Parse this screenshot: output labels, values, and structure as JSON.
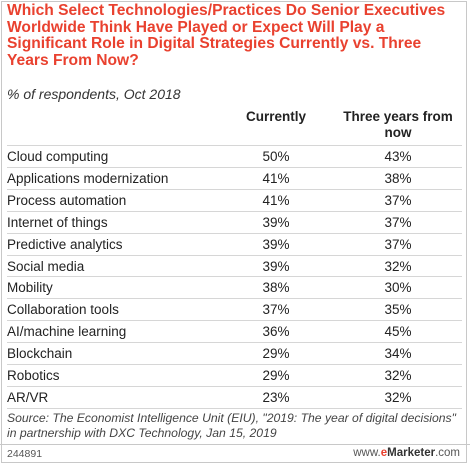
{
  "chart_data": {
    "type": "table",
    "title": "Which Select Technologies/Practices Do Senior Executives Worldwide Think Have Played or Expect Will Play a Significant Role in Digital Strategies Currently vs. Three Years From Now?",
    "subtitle": "% of respondents, Oct 2018",
    "columns": [
      "Currently",
      "Three years from now"
    ],
    "rows": [
      {
        "label": "Cloud computing",
        "values": [
          "50%",
          "43%"
        ]
      },
      {
        "label": "Applications modernization",
        "values": [
          "41%",
          "38%"
        ]
      },
      {
        "label": "Process automation",
        "values": [
          "41%",
          "37%"
        ]
      },
      {
        "label": "Internet of things",
        "values": [
          "39%",
          "37%"
        ]
      },
      {
        "label": "Predictive analytics",
        "values": [
          "39%",
          "37%"
        ]
      },
      {
        "label": "Social media",
        "values": [
          "39%",
          "32%"
        ]
      },
      {
        "label": "Mobility",
        "values": [
          "38%",
          "30%"
        ]
      },
      {
        "label": "Collaboration tools",
        "values": [
          "37%",
          "35%"
        ]
      },
      {
        "label": "AI/machine learning",
        "values": [
          "36%",
          "45%"
        ]
      },
      {
        "label": "Blockchain",
        "values": [
          "29%",
          "34%"
        ]
      },
      {
        "label": "Robotics",
        "values": [
          "29%",
          "32%"
        ]
      },
      {
        "label": "AR/VR",
        "values": [
          "23%",
          "32%"
        ]
      }
    ],
    "source": "Source: The Economist Intelligence Unit (EIU), \"2019: The year of digital decisions\" in partnership with DXC Technology, Jan 15, 2019",
    "chart_id": "244891",
    "brand": {
      "prefix": "www.",
      "e": "e",
      "name": "Marketer",
      "suffix": ".com"
    }
  },
  "colors": {
    "title": "#e9412f",
    "divider": "#d6d6d6",
    "text": "#222222"
  }
}
